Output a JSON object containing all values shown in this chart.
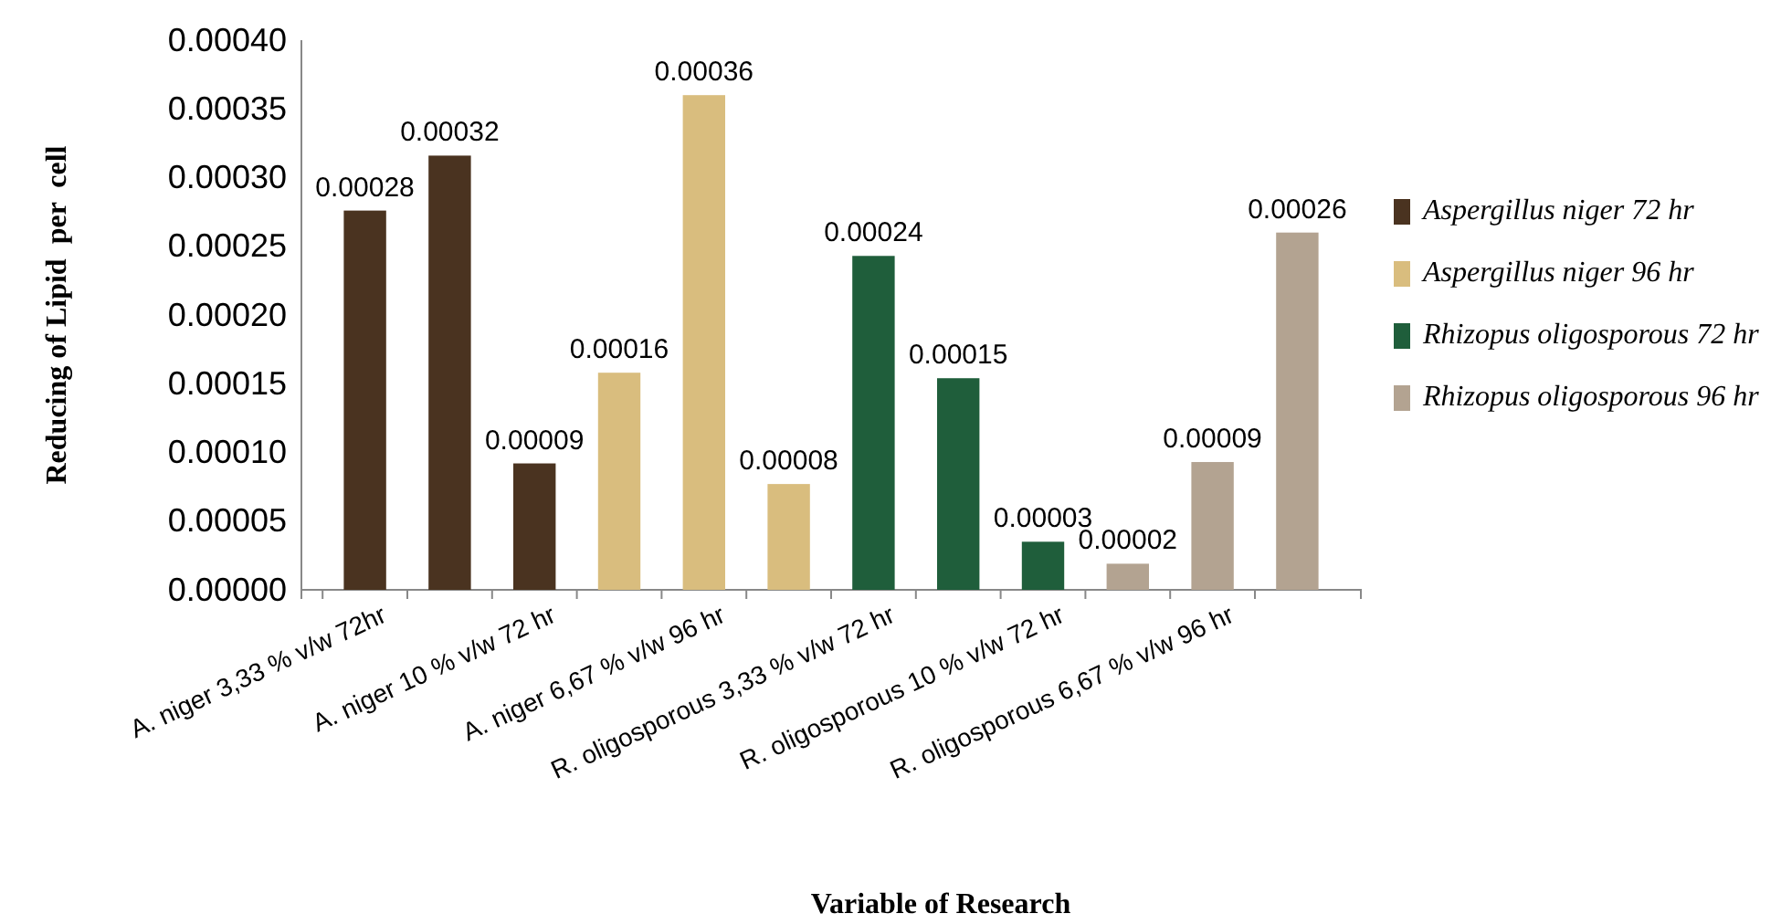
{
  "chart_data": {
    "type": "bar",
    "xlabel": "Variable of Research",
    "ylabel": "Reducing of Lipid  per  cell",
    "categories": [
      "A. niger 3,33 % v/w 72hr",
      null,
      "A. niger 10 % v/w 72 hr",
      null,
      "A. niger 6,67 % v/w 96 hr",
      null,
      "R. oligosporous 3,33 % v/w 72 hr",
      null,
      "R. oligosporous 10 % v/w 72 hr",
      null,
      "R. oligosporous 6,67 % v/w 96 hr",
      null
    ],
    "series": [
      {
        "name": "Aspergillus niger 72 hr",
        "color": "#4a3320",
        "values": [
          0.000276,
          0.000316,
          9.2e-05,
          null,
          null,
          null,
          null,
          null,
          null,
          null,
          null,
          null
        ],
        "value_labels": [
          "0.00028",
          "0.00032",
          "0.00009",
          null,
          null,
          null,
          null,
          null,
          null,
          null,
          null,
          null
        ]
      },
      {
        "name": "Aspergillus niger 96 hr",
        "color": "#d9bd7e",
        "values": [
          null,
          null,
          null,
          0.000158,
          0.00036,
          7.7e-05,
          null,
          null,
          null,
          null,
          null,
          null
        ],
        "value_labels": [
          null,
          null,
          null,
          "0.00016",
          "0.00036",
          "0.00008",
          null,
          null,
          null,
          null,
          null,
          null
        ]
      },
      {
        "name": "Rhizopus oligosporous 72 hr",
        "color": "#1f5e3b",
        "values": [
          null,
          null,
          null,
          null,
          null,
          null,
          0.000243,
          0.000154,
          3.5e-05,
          null,
          null,
          null
        ],
        "value_labels": [
          null,
          null,
          null,
          null,
          null,
          null,
          "0.00024",
          "0.00015",
          "0.00003",
          null,
          null,
          null
        ]
      },
      {
        "name": "Rhizopus oligosporous 96 hr",
        "color": "#b3a391",
        "values": [
          null,
          null,
          null,
          null,
          null,
          null,
          null,
          null,
          null,
          1.9e-05,
          9.3e-05,
          0.00026
        ],
        "value_labels": [
          null,
          null,
          null,
          null,
          null,
          null,
          null,
          null,
          null,
          "0.00002",
          "0.00009",
          "0.00026"
        ]
      }
    ],
    "ylim": [
      0,
      0.0004
    ],
    "yticks": [
      "0.00000",
      "0.00005",
      "0.00010",
      "0.00015",
      "0.00020",
      "0.00025",
      "0.00030",
      "0.00035",
      "0.00040"
    ],
    "grid": false,
    "legend": "right"
  }
}
